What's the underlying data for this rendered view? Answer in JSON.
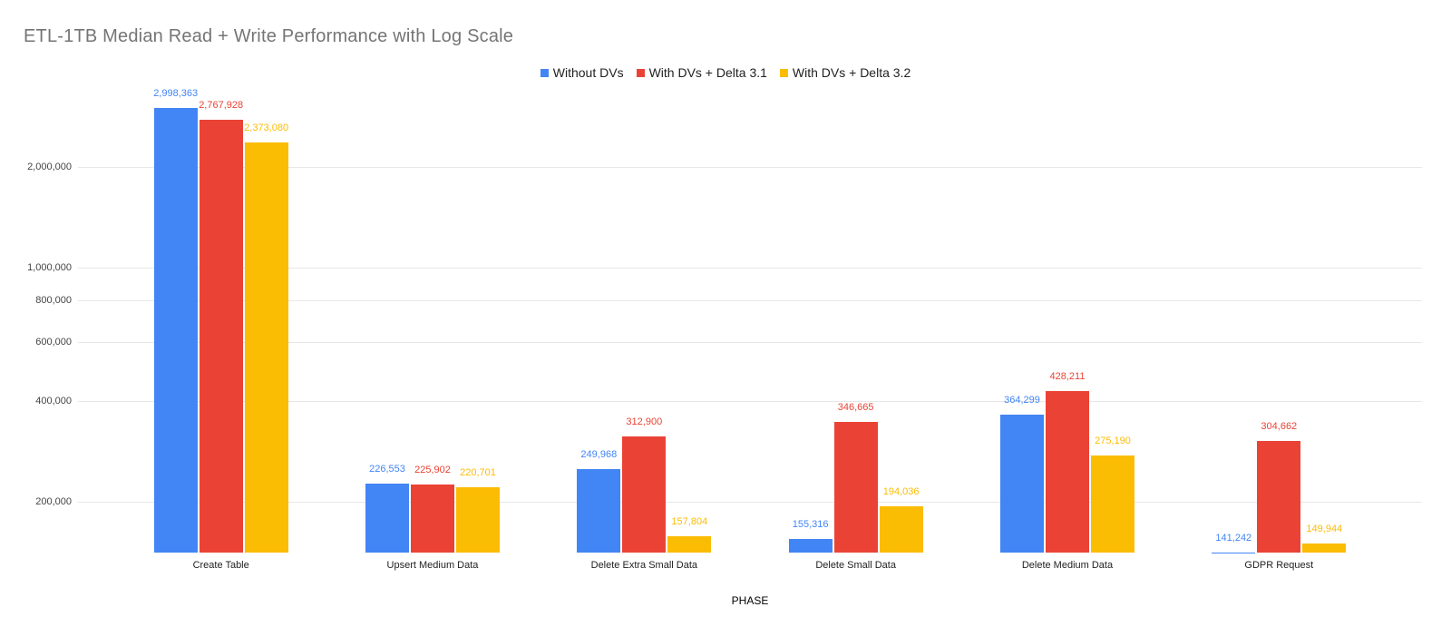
{
  "chart_data": {
    "type": "bar",
    "title": "ETL-1TB Median Read + Write Performance with Log Scale",
    "xlabel": "PHASE",
    "ylabel": "",
    "y_scale": "log",
    "ylim": [
      141000,
      3500000
    ],
    "y_ticks": [
      200000,
      400000,
      600000,
      800000,
      1000000,
      2000000
    ],
    "grid": true,
    "legend_position": "top",
    "value_labels": true,
    "categories": [
      "Create Table",
      "Upsert Medium Data",
      "Delete Extra Small Data",
      "Delete Small Data",
      "Delete Medium Data",
      "GDPR Request"
    ],
    "series": [
      {
        "name": "Without DVs",
        "color": "#4285F4",
        "values": [
          2998363,
          226553,
          249968,
          155316,
          364299,
          141242
        ]
      },
      {
        "name": "With DVs + Delta 3.1",
        "color": "#EA4335",
        "values": [
          2767928,
          225902,
          312900,
          346665,
          428211,
          304662
        ]
      },
      {
        "name": "With DVs + Delta 3.2",
        "color": "#FBBC04",
        "values": [
          2373080,
          220701,
          157804,
          194036,
          275190,
          149944
        ]
      }
    ]
  }
}
